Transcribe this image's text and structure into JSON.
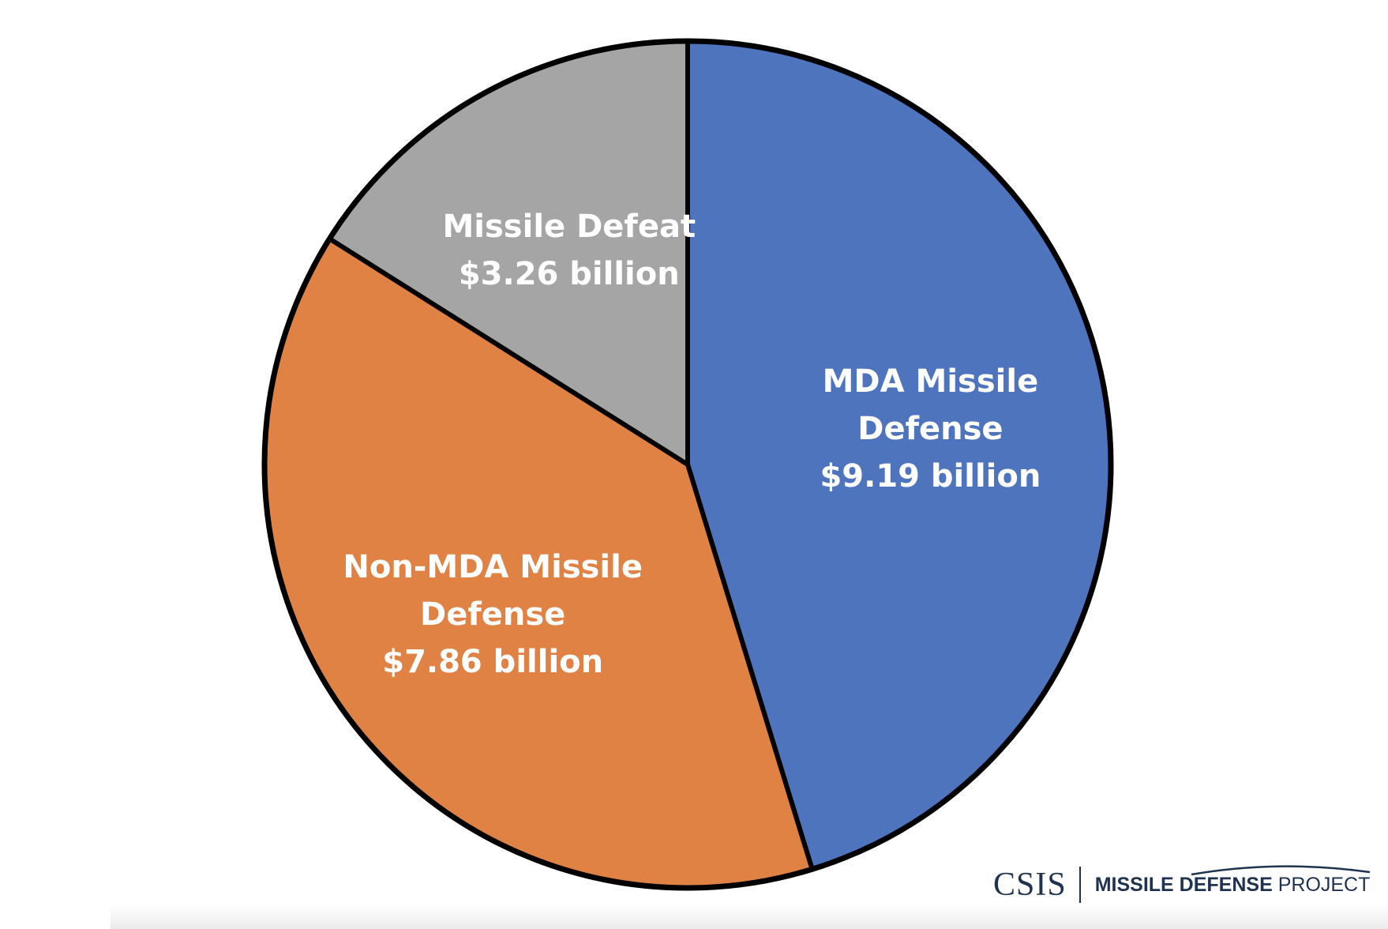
{
  "chart_data": {
    "type": "pie",
    "title": "",
    "unit": "billion",
    "start_angle_deg": 0,
    "direction": "clockwise",
    "slices": [
      {
        "name": "MDA Missile Defense",
        "label_lines": [
          "MDA Missile",
          "Defense",
          "$9.19 billion"
        ],
        "value": 9.19,
        "color": "#4f74be"
      },
      {
        "name": "Non-MDA Missile Defense",
        "label_lines": [
          "Non-MDA Missile",
          "Defense",
          "$7.86 billion"
        ],
        "value": 7.86,
        "color": "#e08244"
      },
      {
        "name": "Missile Defeat",
        "label_lines": [
          "Missile Defeat",
          "$3.26 billion"
        ],
        "value": 3.26,
        "color": "#a5a5a5"
      }
    ],
    "edge_color": "#000000",
    "legend": "none"
  },
  "branding": {
    "org": "CSIS",
    "project_bold": "MISSILE DEFENSE",
    "project_rest": " PROJECT"
  }
}
